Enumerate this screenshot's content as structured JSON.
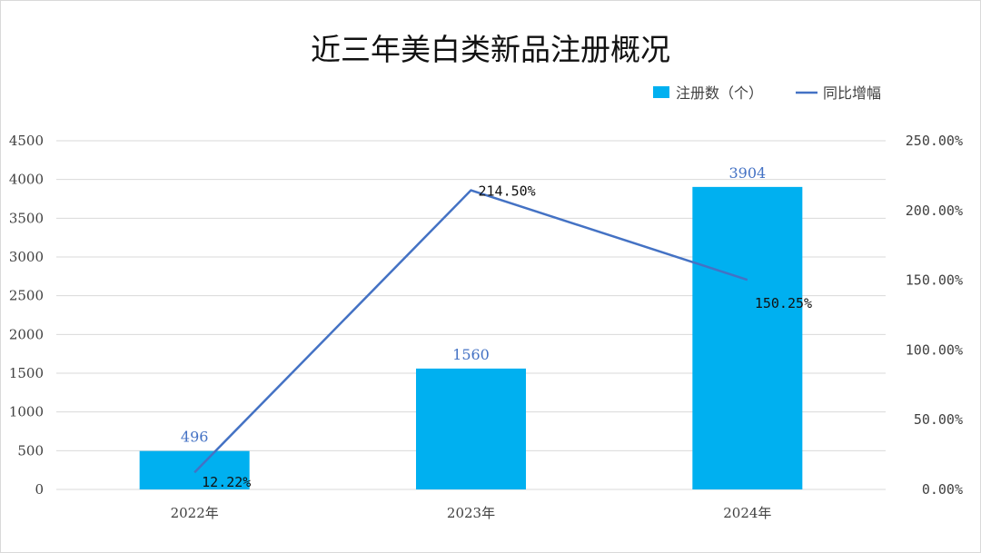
{
  "chart_data": {
    "type": "bar",
    "title": "近三年美白类新品注册概况",
    "categories": [
      "2022年",
      "2023年",
      "2024年"
    ],
    "series": [
      {
        "name": "注册数（个）",
        "type": "bar",
        "axis": "left",
        "values": [
          496,
          1560,
          3904
        ],
        "value_labels": [
          "496",
          "1560",
          "3904"
        ],
        "color": "#00B0F0",
        "label_color": "#4472C4"
      },
      {
        "name": "同比增幅",
        "type": "line",
        "axis": "right",
        "values": [
          12.22,
          214.5,
          150.25
        ],
        "value_labels": [
          "12.22%",
          "214.50%",
          "150.25%"
        ],
        "color": "#4472C4",
        "label_color": "#111111"
      }
    ],
    "y_left": {
      "min": 0,
      "max": 4500,
      "ticks": [
        0,
        500,
        1000,
        1500,
        2000,
        2500,
        3000,
        3500,
        4000,
        4500
      ],
      "tick_labels": [
        "0",
        "500",
        "1000",
        "1500",
        "2000",
        "2500",
        "3000",
        "3500",
        "4000",
        "4500"
      ]
    },
    "y_right": {
      "min": 0,
      "max": 250,
      "ticks": [
        0,
        50,
        100,
        150,
        200,
        250
      ],
      "tick_labels": [
        "0.00%",
        "50.00%",
        "100.00%",
        "150.00%",
        "200.00%",
        "250.00%"
      ]
    },
    "grid": true,
    "legend": "top-right",
    "colors": {
      "grid": "#D9D9D9",
      "axis_text": "#404040"
    }
  }
}
